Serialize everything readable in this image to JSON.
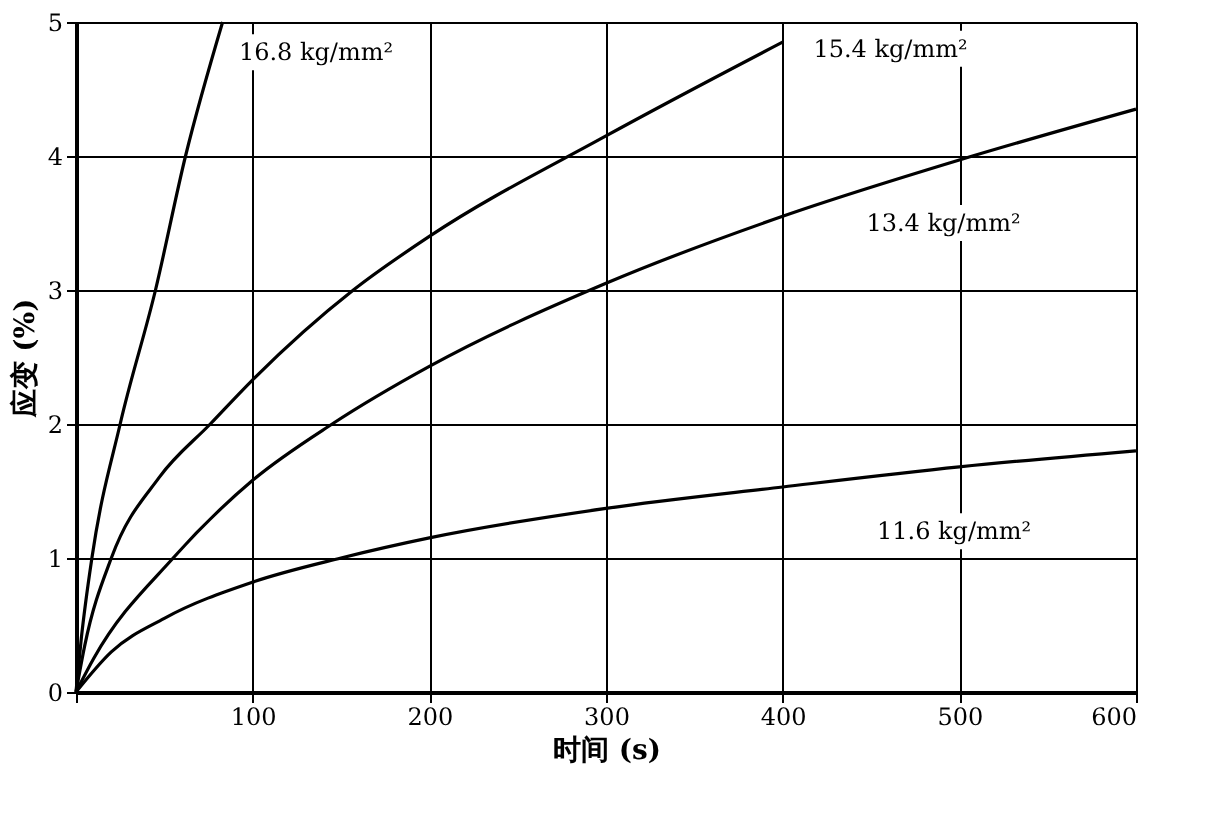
{
  "chart_data": {
    "type": "line",
    "xlabel": "时间 (s)",
    "ylabel": "应变 (%)",
    "xlim": [
      0,
      600
    ],
    "ylim": [
      0,
      5
    ],
    "xticks": [
      {
        "value": 0,
        "label": null
      },
      100,
      200,
      300,
      400,
      500,
      600
    ],
    "yticks": [
      0,
      1,
      2,
      3,
      4,
      5
    ],
    "grid": true,
    "legend": false,
    "marker": "none",
    "line_style": "solid",
    "series": [
      {
        "color": "#000000",
        "x": [
          0,
          3,
          9,
          25,
          45,
          62,
          83
        ],
        "values": [
          0,
          0.4,
          1,
          2,
          3,
          4,
          5
        ]
      },
      {
        "color": "#000000",
        "x": [
          0,
          5,
          20,
          47,
          76,
          100,
          157,
          200,
          300,
          400
        ],
        "values": [
          0,
          0.35,
          1,
          1.6,
          2,
          2.33,
          3,
          3.4,
          4.15,
          4.85
        ]
      },
      {
        "color": "#000000",
        "x": [
          0,
          10,
          55,
          100,
          145,
          200,
          300,
          400,
          500,
          600
        ],
        "values": [
          0,
          0.25,
          1,
          1.58,
          2,
          2.43,
          3.05,
          3.55,
          3.97,
          4.35
        ]
      },
      {
        "color": "#000000",
        "x": [
          0,
          20,
          50,
          100,
          150,
          200,
          300,
          400,
          500,
          600
        ],
        "values": [
          0,
          0.3,
          0.55,
          0.82,
          1,
          1.15,
          1.37,
          1.53,
          1.68,
          1.8
        ]
      }
    ],
    "annotations": [
      "16.8 kg/mm²",
      "15.4 kg/mm²",
      "13.4 kg/mm²",
      "11.6 kg/mm²"
    ]
  }
}
